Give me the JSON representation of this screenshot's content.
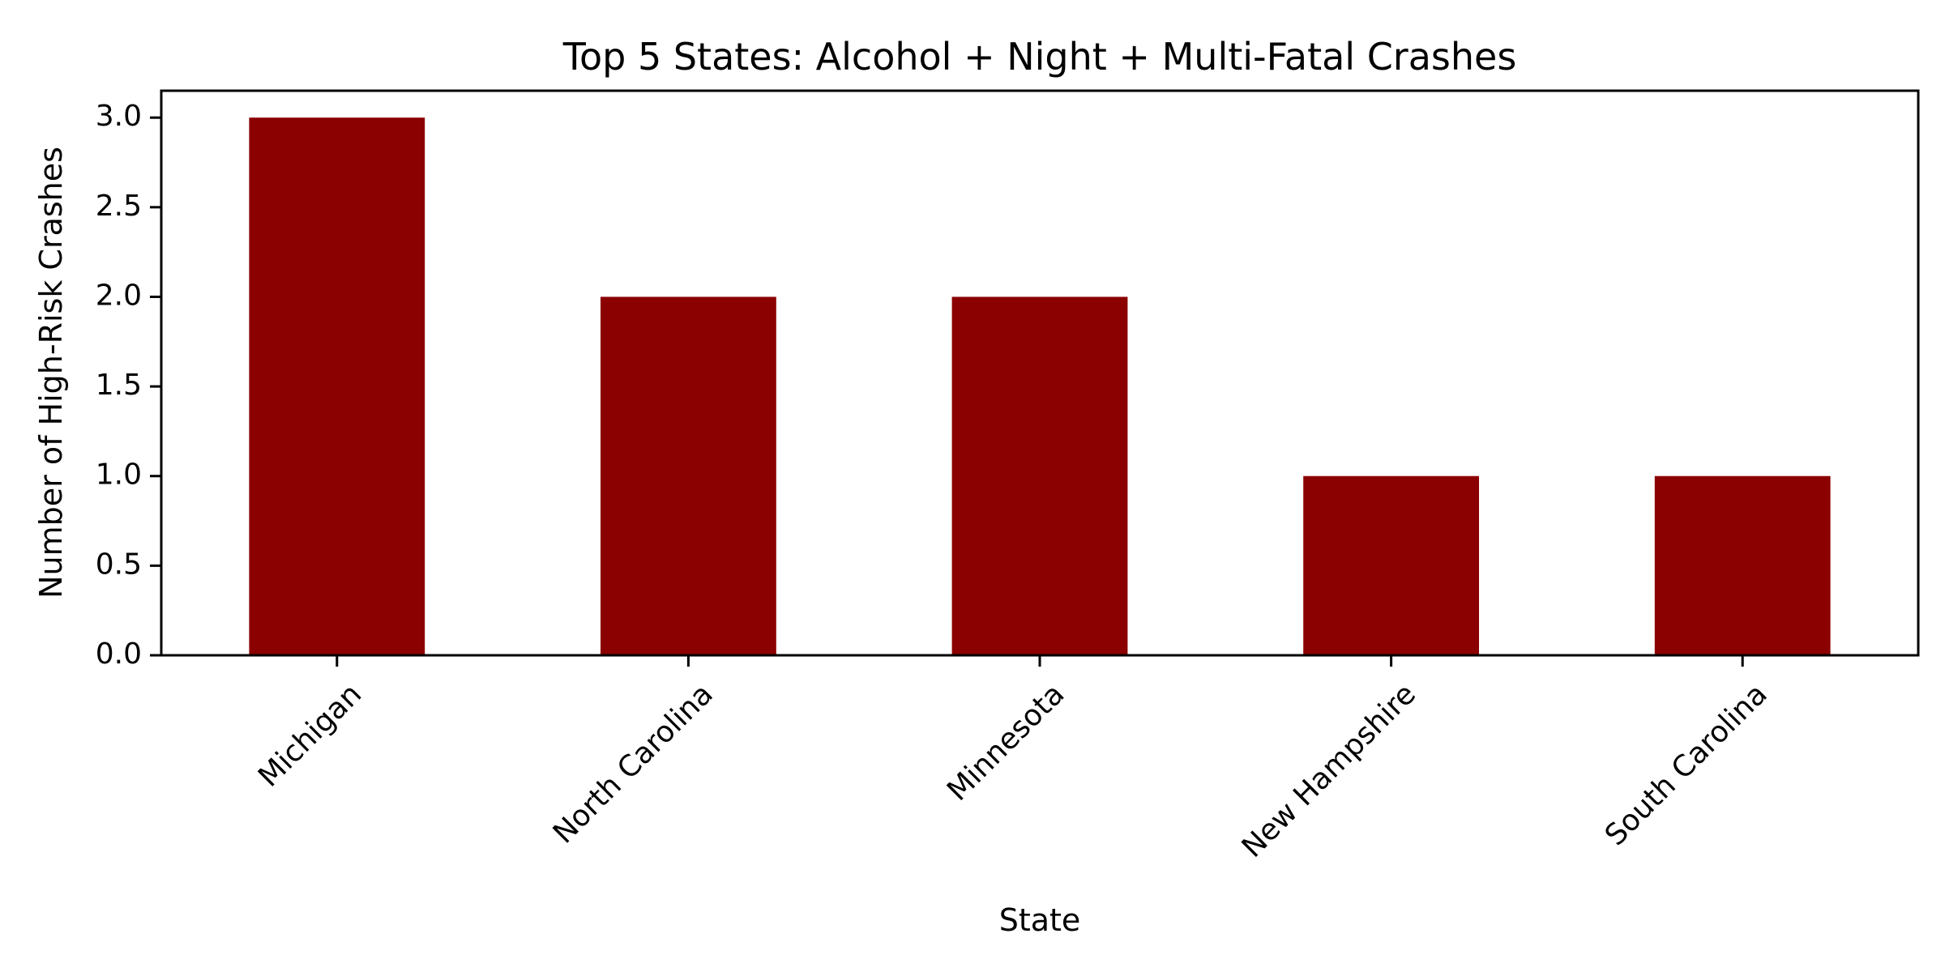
{
  "chart_data": {
    "type": "bar",
    "title": "Top 5 States: Alcohol + Night + Multi-Fatal Crashes",
    "xlabel": "State",
    "ylabel": "Number of High-Risk Crashes",
    "categories": [
      "Michigan",
      "North Carolina",
      "Minnesota",
      "New Hampshire",
      "South Carolina"
    ],
    "values": [
      3,
      2,
      2,
      1,
      1
    ],
    "ylim": [
      0,
      3.15
    ],
    "yticks": [
      0.0,
      0.5,
      1.0,
      1.5,
      2.0,
      2.5,
      3.0
    ],
    "ytick_labels": [
      "0.0",
      "0.5",
      "1.0",
      "1.5",
      "2.0",
      "2.5",
      "3.0"
    ],
    "bar_color": "#8b0000",
    "grid": false,
    "legend": "none"
  }
}
